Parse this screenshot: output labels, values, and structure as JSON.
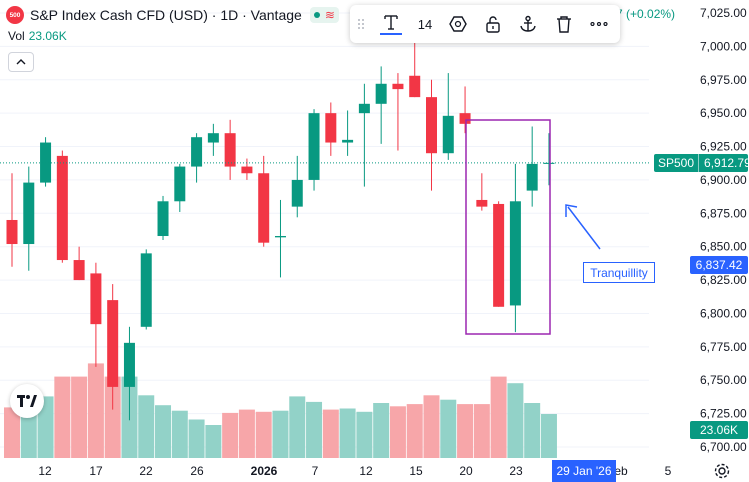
{
  "header": {
    "badge": "500",
    "title": "S&P Index Cash CFD (USD) · 1D · Vantage",
    "change_text": "7 (+0.02%)"
  },
  "volume": {
    "label": "Vol",
    "value": "23.06K"
  },
  "toolbar": {
    "font_size": "14",
    "tools": [
      "text-tool-icon",
      "font-size",
      "shape-icon",
      "lock-icon",
      "anchor-icon",
      "trash-icon",
      "more-icon"
    ]
  },
  "annotation": {
    "label": "Tranquillity"
  },
  "price_scale": {
    "ticks": [
      "7,025.00",
      "7,000.00",
      "6,975.00",
      "6,950.00",
      "6,925.00",
      "6,900.00",
      "6,875.00",
      "6,850.00",
      "6,825.00",
      "6,800.00",
      "6,775.00",
      "6,750.00",
      "6,725.00",
      "6,700.00"
    ],
    "current_tag": {
      "symbol": "SP500",
      "price": "6,912.79"
    },
    "crosshair_price": "6,837.42",
    "volume_tag": "23.06K"
  },
  "time_scale": {
    "ticks": [
      "12",
      "17",
      "22",
      "26",
      "2026",
      "7",
      "12",
      "15",
      "20",
      "23",
      "eb",
      "5"
    ],
    "crosshair_date": "29 Jan '26"
  },
  "colors": {
    "up": "#089981",
    "down": "#f23645",
    "up_vol": "#92d2c8",
    "down_vol": "#f7a6a9",
    "accent": "#2962ff",
    "box": "#9c27b0"
  },
  "chart_data": {
    "type": "candlestick",
    "title": "S&P Index Cash CFD (USD) · 1D · Vantage",
    "ylim": [
      6700,
      7030
    ],
    "candles": [
      {
        "o": 6870,
        "h": 6905,
        "l": 6835,
        "c": 6852
      },
      {
        "o": 6852,
        "h": 6910,
        "l": 6832,
        "c": 6898
      },
      {
        "o": 6898,
        "h": 6932,
        "l": 6895,
        "c": 6928
      },
      {
        "o": 6918,
        "h": 6922,
        "l": 6838,
        "c": 6840
      },
      {
        "o": 6840,
        "h": 6850,
        "l": 6825,
        "c": 6825
      },
      {
        "o": 6830,
        "h": 6838,
        "l": 6760,
        "c": 6792
      },
      {
        "o": 6810,
        "h": 6822,
        "l": 6728,
        "c": 6745
      },
      {
        "o": 6745,
        "h": 6790,
        "l": 6720,
        "c": 6778
      },
      {
        "o": 6790,
        "h": 6848,
        "l": 6788,
        "c": 6845
      },
      {
        "o": 6858,
        "h": 6888,
        "l": 6855,
        "c": 6884
      },
      {
        "o": 6884,
        "h": 6912,
        "l": 6876,
        "c": 6910
      },
      {
        "o": 6910,
        "h": 6935,
        "l": 6898,
        "c": 6932
      },
      {
        "o": 6928,
        "h": 6942,
        "l": 6918,
        "c": 6935
      },
      {
        "o": 6935,
        "h": 6945,
        "l": 6900,
        "c": 6910
      },
      {
        "o": 6910,
        "h": 6916,
        "l": 6900,
        "c": 6905
      },
      {
        "o": 6905,
        "h": 6918,
        "l": 6850,
        "c": 6853
      },
      {
        "o": 6857,
        "h": 6885,
        "l": 6827,
        "c": 6858
      },
      {
        "o": 6880,
        "h": 6918,
        "l": 6872,
        "c": 6900
      },
      {
        "o": 6900,
        "h": 6953,
        "l": 6892,
        "c": 6950
      },
      {
        "o": 6950,
        "h": 6958,
        "l": 6918,
        "c": 6928
      },
      {
        "o": 6928,
        "h": 6952,
        "l": 6918,
        "c": 6930
      },
      {
        "o": 6950,
        "h": 6972,
        "l": 6895,
        "c": 6957
      },
      {
        "o": 6957,
        "h": 6985,
        "l": 6927,
        "c": 6972
      },
      {
        "o": 6972,
        "h": 6980,
        "l": 6922,
        "c": 6968
      },
      {
        "o": 6978,
        "h": 7003,
        "l": 6962,
        "c": 6962
      },
      {
        "o": 6962,
        "h": 6975,
        "l": 6892,
        "c": 6920
      },
      {
        "o": 6920,
        "h": 6980,
        "l": 6915,
        "c": 6948
      },
      {
        "o": 6950,
        "h": 6970,
        "l": 6935,
        "c": 6942
      },
      {
        "o": 6885,
        "h": 6905,
        "l": 6877,
        "c": 6880
      },
      {
        "o": 6882,
        "h": 6884,
        "l": 6805,
        "c": 6805
      },
      {
        "o": 6806,
        "h": 6912,
        "l": 6786,
        "c": 6884
      },
      {
        "o": 6892,
        "h": 6940,
        "l": 6880,
        "c": 6912
      },
      {
        "o": 6912,
        "h": 6935,
        "l": 6896,
        "c": 6912.79
      }
    ],
    "volumes": [
      0.46,
      0.64,
      0.56,
      0.74,
      0.74,
      0.86,
      0.74,
      0.74,
      0.57,
      0.48,
      0.43,
      0.35,
      0.3,
      0.41,
      0.44,
      0.42,
      0.43,
      0.56,
      0.51,
      0.44,
      0.45,
      0.42,
      0.5,
      0.47,
      0.49,
      0.57,
      0.53,
      0.49,
      0.49,
      0.74,
      0.68,
      0.5,
      0.4
    ]
  }
}
